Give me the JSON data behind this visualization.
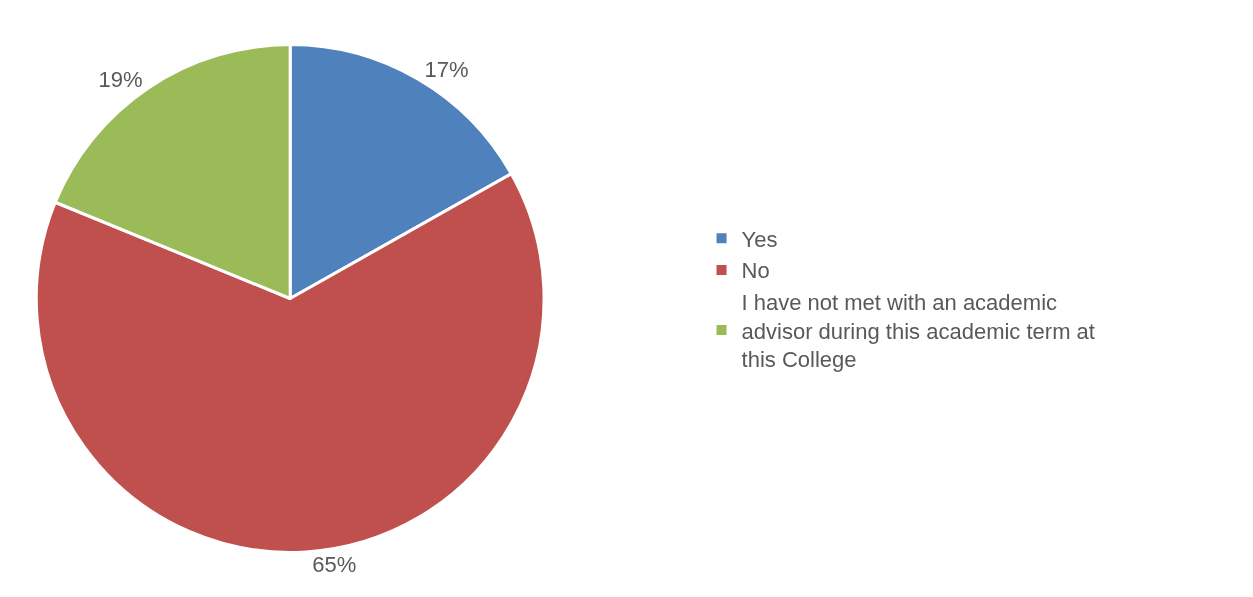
{
  "chart_data": {
    "type": "pie",
    "categories": [
      "Yes",
      "No",
      "I have not met with an academic advisor during this academic term at this College"
    ],
    "values": [
      17,
      65,
      19
    ],
    "value_labels": [
      "17%",
      "65%",
      "19%"
    ],
    "colors": [
      "#4f81bd",
      "#c0504d",
      "#9bbb59"
    ],
    "legend": "right"
  }
}
